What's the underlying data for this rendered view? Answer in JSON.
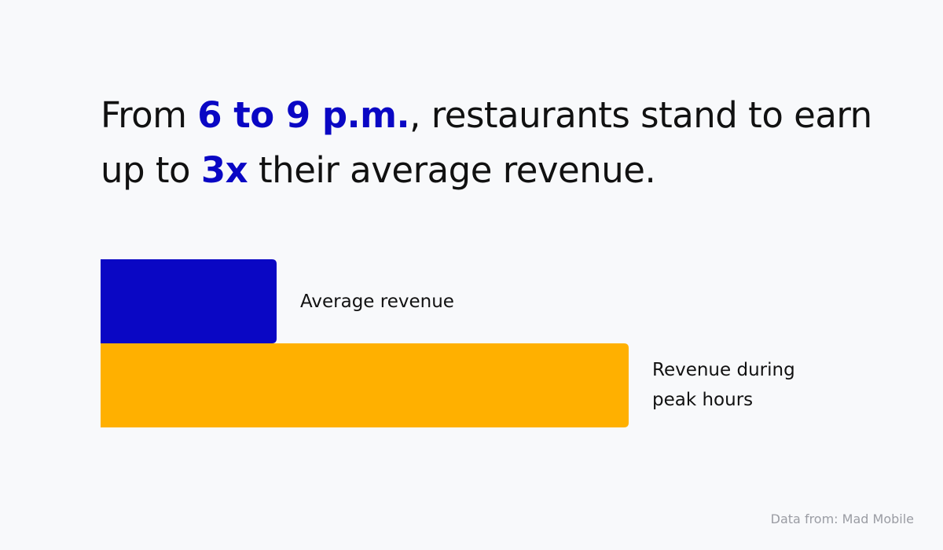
{
  "headline": {
    "part1": "From ",
    "highlight1": "6 to 9 p.m.",
    "part2": ", restaurants stand to earn up to ",
    "highlight2": "3x",
    "part3": " their average revenue."
  },
  "colors": {
    "highlight": "#0a07c4",
    "bar_average": "#0a07c4",
    "bar_peak": "#ffb000",
    "background": "#f8f9fb"
  },
  "chart_data": {
    "type": "bar",
    "orientation": "horizontal",
    "categories": [
      "Average revenue",
      "Revenue during peak hours"
    ],
    "values": [
      1,
      3
    ],
    "unit": "x average revenue",
    "colors": [
      "#0a07c4",
      "#ffb000"
    ],
    "grid": false,
    "legend": "none"
  },
  "source": "Data from: Mad Mobile"
}
